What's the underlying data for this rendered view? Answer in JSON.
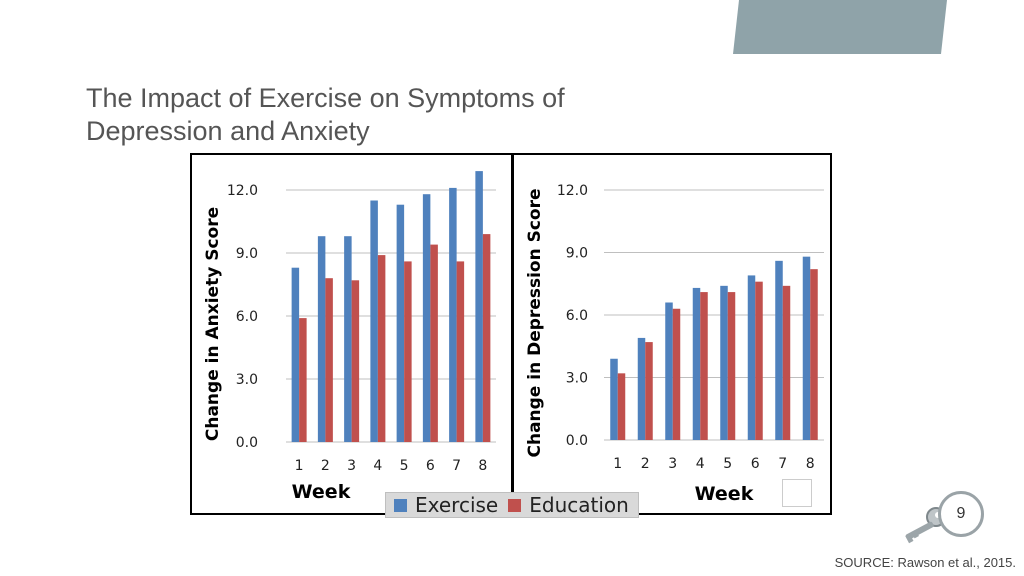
{
  "slide": {
    "title_line1": "The Impact of Exercise on Symptoms of",
    "title_line2": "Depression and Anxiety",
    "page_number": "9",
    "source": "SOURCE: Rawson et al., 2015.",
    "accent_color": "#8fa3a9",
    "key_icon": "key-icon"
  },
  "legend": {
    "entries": [
      {
        "name": "Exercise",
        "color": "#4f81bd"
      },
      {
        "name": "Education",
        "color": "#c0504d"
      }
    ]
  },
  "chart_data": [
    {
      "type": "bar",
      "title": "",
      "xlabel": "Week",
      "ylabel": "Change in Anxiety Score",
      "categories": [
        "1",
        "2",
        "3",
        "4",
        "5",
        "6",
        "7",
        "8"
      ],
      "yticks": [
        "0.0",
        "3.0",
        "6.0",
        "9.0",
        "12.0"
      ],
      "ylim": [
        0,
        12.0
      ],
      "grid": true,
      "series": [
        {
          "name": "Exercise",
          "color": "#4f81bd",
          "values": [
            8.3,
            9.8,
            9.8,
            11.5,
            11.3,
            11.8,
            12.1,
            12.9
          ]
        },
        {
          "name": "Education",
          "color": "#c0504d",
          "values": [
            5.9,
            7.8,
            7.7,
            8.9,
            8.6,
            9.4,
            8.6,
            9.9
          ]
        }
      ]
    },
    {
      "type": "bar",
      "title": "",
      "xlabel": "Week",
      "ylabel": "Change in Depression Score",
      "categories": [
        "1",
        "2",
        "3",
        "4",
        "5",
        "6",
        "7",
        "8"
      ],
      "yticks": [
        "0.0",
        "3.0",
        "6.0",
        "9.0",
        "12.0"
      ],
      "ylim": [
        0,
        12.0
      ],
      "grid": true,
      "series": [
        {
          "name": "Exercise",
          "color": "#4f81bd",
          "values": [
            3.9,
            4.9,
            6.6,
            7.3,
            7.4,
            7.9,
            8.6,
            8.8
          ]
        },
        {
          "name": "Education",
          "color": "#c0504d",
          "values": [
            3.2,
            4.7,
            6.3,
            7.1,
            7.1,
            7.6,
            7.4,
            8.2
          ]
        }
      ]
    }
  ]
}
